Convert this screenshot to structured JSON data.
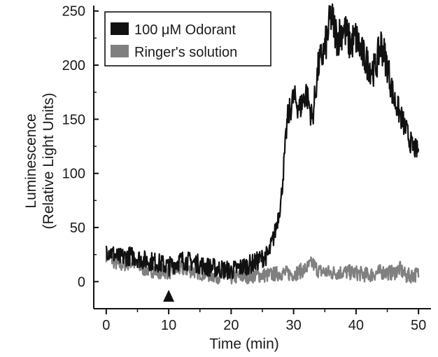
{
  "chart_data": {
    "type": "line",
    "title": "",
    "xlabel": "Time (min)",
    "ylabel_line1": "Luminescence",
    "ylabel_line2": "(Relative Light Units)",
    "xlim": [
      -2,
      52
    ],
    "ylim": [
      -25,
      255
    ],
    "x_ticks": [
      0,
      10,
      20,
      30,
      40,
      50
    ],
    "x_tick_labels": [
      "0",
      "10",
      "20",
      "30",
      "40",
      "50"
    ],
    "y_ticks": [
      0,
      50,
      100,
      150,
      200,
      250
    ],
    "y_tick_labels": [
      "0",
      "50",
      "100",
      "150",
      "200",
      "250"
    ],
    "marker": {
      "shape": "triangle-up",
      "x": 10
    },
    "legend_position": "top-left",
    "grid": false,
    "series": [
      {
        "name": "100 μM Odorant",
        "color": "#111111",
        "x": [
          0,
          2,
          4,
          6,
          8,
          10,
          12,
          14,
          16,
          18,
          20,
          22,
          24,
          25,
          26,
          27,
          28,
          29,
          30,
          31,
          32,
          33,
          34,
          35,
          36,
          37,
          38,
          39,
          40,
          41,
          42,
          43,
          44,
          45,
          46,
          47,
          48,
          49,
          50
        ],
        "values": [
          30,
          22,
          24,
          20,
          18,
          14,
          20,
          18,
          14,
          12,
          10,
          14,
          18,
          22,
          25,
          45,
          75,
          150,
          170,
          160,
          175,
          150,
          200,
          215,
          245,
          225,
          235,
          220,
          225,
          210,
          200,
          195,
          220,
          200,
          170,
          155,
          140,
          125,
          120
        ]
      },
      {
        "name": "Ringer's solution",
        "color": "#808080",
        "x": [
          0,
          2,
          4,
          6,
          8,
          10,
          12,
          14,
          16,
          18,
          20,
          22,
          24,
          26,
          28,
          30,
          32,
          33,
          34,
          36,
          38,
          40,
          42,
          44,
          46,
          47,
          48,
          50
        ],
        "values": [
          25,
          15,
          18,
          12,
          10,
          9,
          12,
          10,
          7,
          5,
          4,
          5,
          6,
          6,
          8,
          7,
          12,
          17,
          10,
          8,
          9,
          8,
          6,
          9,
          8,
          12,
          5,
          7
        ]
      }
    ]
  }
}
